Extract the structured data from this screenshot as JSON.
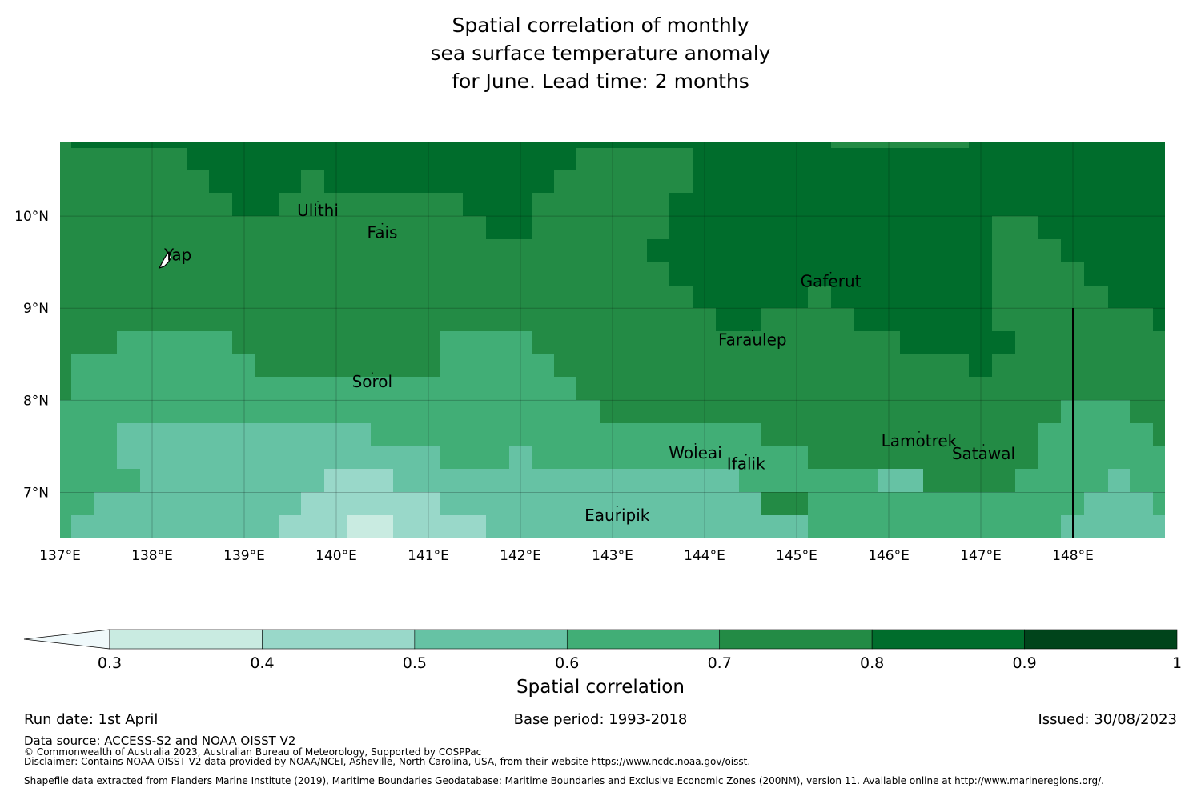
{
  "title": {
    "line1": "Spatial correlation of monthly",
    "line2": "sea surface temperature anomaly",
    "line3": "for June. Lead time: 2 months"
  },
  "map": {
    "lon_range": [
      137,
      149
    ],
    "lat_range": [
      6.5,
      10.8
    ],
    "x_ticks": [
      "137°E",
      "138°E",
      "139°E",
      "140°E",
      "141°E",
      "142°E",
      "143°E",
      "144°E",
      "145°E",
      "146°E",
      "147°E",
      "148°E"
    ],
    "y_ticks": [
      "10°N",
      "9°N",
      "8°N",
      "7°N"
    ],
    "grid": true,
    "colors": {
      "c1": "#c9ebe1",
      "c2": "#99d8c9",
      "c3": "#66c2a4",
      "c4": "#41ae76",
      "c5": "#238b45",
      "c6": "#006d2c",
      "c7": "#00441b"
    },
    "places": [
      {
        "name": "Ulithi",
        "lon": 139.8,
        "lat": 10.0
      },
      {
        "name": "Fais",
        "lon": 140.5,
        "lat": 9.76
      },
      {
        "name": "Yap",
        "lon": 138.13,
        "lat": 9.52
      },
      {
        "name": "Gaferut",
        "lon": 145.37,
        "lat": 9.23
      },
      {
        "name": "Faraulep",
        "lon": 144.52,
        "lat": 8.6
      },
      {
        "name": "Sorol",
        "lon": 140.39,
        "lat": 8.14
      },
      {
        "name": "Woleai",
        "lon": 143.9,
        "lat": 7.37
      },
      {
        "name": "Lamotrek",
        "lon": 146.33,
        "lat": 7.5
      },
      {
        "name": "Satawal",
        "lon": 147.03,
        "lat": 7.36
      },
      {
        "name": "Ifalik",
        "lon": 144.45,
        "lat": 7.25
      },
      {
        "name": "Eauripik",
        "lon": 143.05,
        "lat": 6.69
      }
    ]
  },
  "colorbar": {
    "ticks": [
      "0.3",
      "0.4",
      "0.5",
      "0.6",
      "0.7",
      "0.8",
      "0.9",
      "1"
    ],
    "label": "Spatial correlation",
    "extend": "min",
    "under_color": "#f0f9fb"
  },
  "footer": {
    "run_date": "Run date: 1st April",
    "base_period": "Base period: 1993-2018",
    "issued": "Issued: 30/08/2023",
    "data_source": "Data source: ACCESS-S2 and NOAA OISST V2",
    "copyright": "© Commonwealth of Australia 2023, Australian Bureau of Meteorology, Supported by COSPPac",
    "disclaimer": "Disclaimer: Contains NOAA OISST V2 data provided by NOAA/NCEI, Asheville, North Carolina, USA, from their website https://www.ncdc.noaa.gov/oisst.",
    "shapefile": "Shapefile data extracted from Flanders Marine Institute (2019), Maritime Boundaries Geodatabase: Maritime Boundaries and Exclusive Economic Zones (200NM), version 11. Available online at http://www.marineregions.org/."
  }
}
